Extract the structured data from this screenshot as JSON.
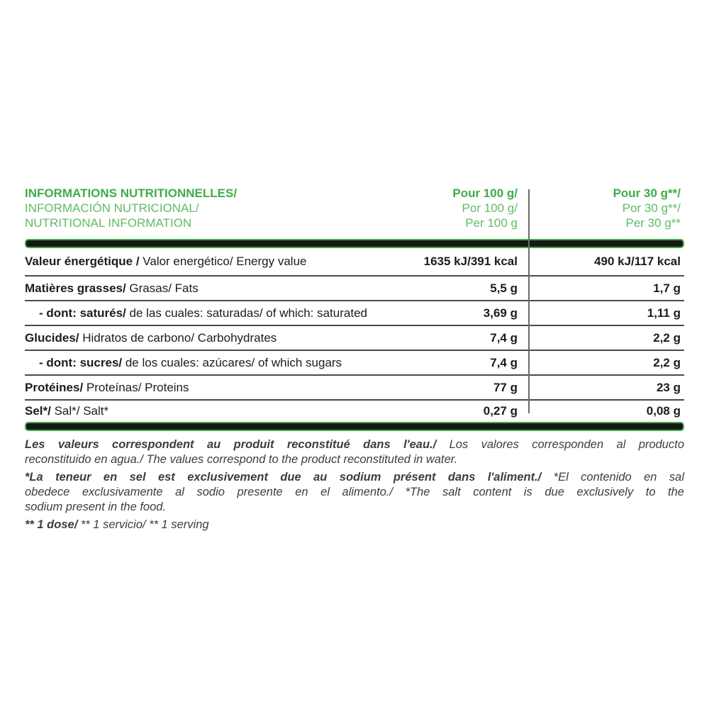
{
  "colors": {
    "green_bold": "#3EAC49",
    "green_light": "#5FBC64",
    "bar_fill": "#171717",
    "table_text": "#1c1c1c"
  },
  "header": {
    "title_lines": [
      "INFORMATIONS NUTRITIONNELLES/",
      "INFORMACIÓN NUTRICIONAL/",
      "NUTRITIONAL INFORMATION"
    ],
    "per100_lines": [
      "Pour 100 g/",
      "Por 100 g/",
      "Per 100 g"
    ],
    "per30_lines": [
      "Pour 30 g**/",
      "Por 30 g**/",
      "Per 30 g**"
    ]
  },
  "table": {
    "rows": [
      {
        "bold": "Valeur énergétique /",
        "rest": " Valor energético/ Energy value",
        "per100": "1635 kJ/391 kcal",
        "per30": "490 kJ/117 kcal"
      },
      {
        "bold": "Matières grasses/",
        "rest": " Grasas/ Fats",
        "per100": "5,5 g",
        "per30": "1,7 g"
      },
      {
        "bold": "- dont: saturés/",
        "rest": " de las cuales: saturadas/ of which: saturated",
        "per100": "3,69 g",
        "per30": "1,11 g"
      },
      {
        "bold": "Glucides/",
        "rest": " Hidratos de carbono/ Carbohydrates",
        "per100": "7,4 g",
        "per30": "2,2 g"
      },
      {
        "bold": "- dont: sucres/",
        "rest": " de los cuales: azúcares/ of which sugars",
        "per100": "7,4 g",
        "per30": "2,2 g"
      },
      {
        "bold": "Protéines/",
        "rest": " Proteínas/ Proteins",
        "per100": "77 g",
        "per30": "23 g"
      },
      {
        "bold": "Sel*/",
        "rest": " Sal*/ Salt*",
        "per100": "0,27 g",
        "per30": "0,08 g"
      }
    ]
  },
  "footnotes": {
    "p1l1_bold": "Les valeurs correspondent au produit reconstitué dans l'eau./",
    "p1l1_rest": " Los valores corresponden al producto",
    "p1l2": "reconstituido en agua./  The values correspond to the product reconstituted in water.",
    "p2l1_bold": "*La teneur en sel est exclusivement due au sodium présent dans l'aliment./",
    "p2l1_rest": "  *El contenido en sal",
    "p2l2": "obedece exclusivamente al sodio presente en el alimento./ *The salt content is due exclusively to the",
    "p2l3": "sodium present in the food.",
    "p3_bold": "** 1 dose/",
    "p3_rest": "  ** 1 servicio/ ** 1 serving"
  }
}
